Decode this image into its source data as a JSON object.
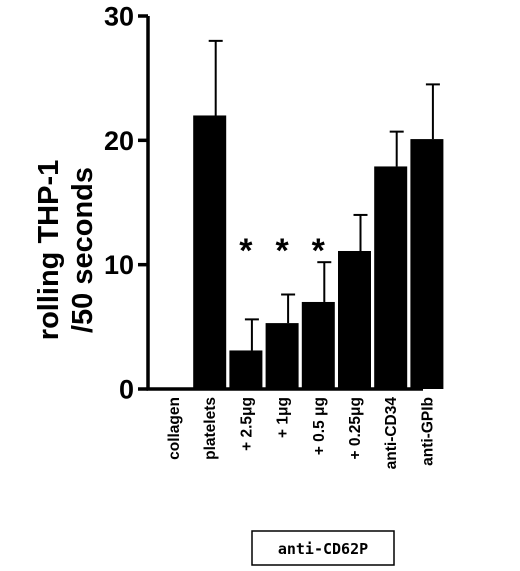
{
  "chart_data": {
    "type": "bar",
    "ylabel_line1": "rolling THP-1",
    "ylabel_line2": "/50 seconds",
    "ylim": [
      0,
      30
    ],
    "yticks": [
      0,
      10,
      20,
      30
    ],
    "categories": [
      "collagen",
      "platelets",
      "+ 2.5μg",
      "+ 1μg",
      "+ 0.5 μg",
      "+ 0.25μg",
      "anti-CD34",
      "anti-GPIb"
    ],
    "values": [
      0,
      22.0,
      3.1,
      5.3,
      7.0,
      11.1,
      17.9,
      20.1
    ],
    "errors": [
      0,
      6.0,
      2.5,
      2.3,
      3.2,
      2.9,
      2.8,
      4.4
    ],
    "significance": [
      "",
      "",
      "*",
      "*",
      "*",
      "",
      "",
      ""
    ],
    "group_label": "anti-CD62P",
    "bar_color": "#000000"
  }
}
